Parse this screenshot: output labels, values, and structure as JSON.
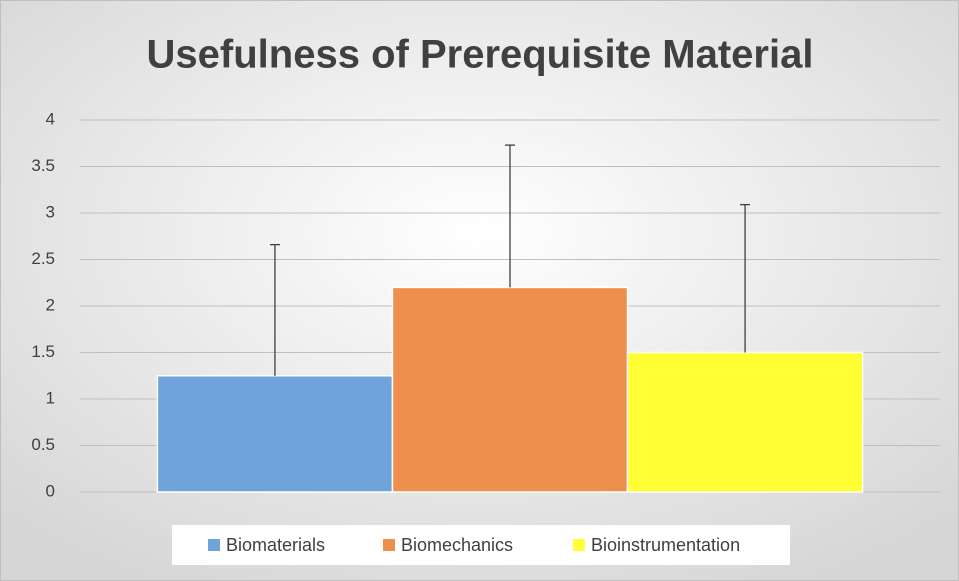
{
  "chart_data": {
    "type": "bar",
    "title": "Usefulness of Prerequisite Material",
    "series": [
      {
        "name": "Biomaterials",
        "color": "#6fa4db",
        "values": [
          1.25
        ],
        "errors": [
          1.41
        ]
      },
      {
        "name": "Biomechanics",
        "color": "#ef8f4d",
        "values": [
          2.2
        ],
        "errors": [
          1.53
        ]
      },
      {
        "name": "Bioinstrumentation",
        "color": "#ffff33",
        "values": [
          1.5
        ],
        "errors": [
          1.59
        ]
      }
    ],
    "ylim": [
      0,
      4
    ],
    "yticks": [
      0,
      0.5,
      1,
      1.5,
      2,
      2.5,
      3,
      3.5,
      4
    ],
    "grid": true,
    "legend": "bottom"
  }
}
